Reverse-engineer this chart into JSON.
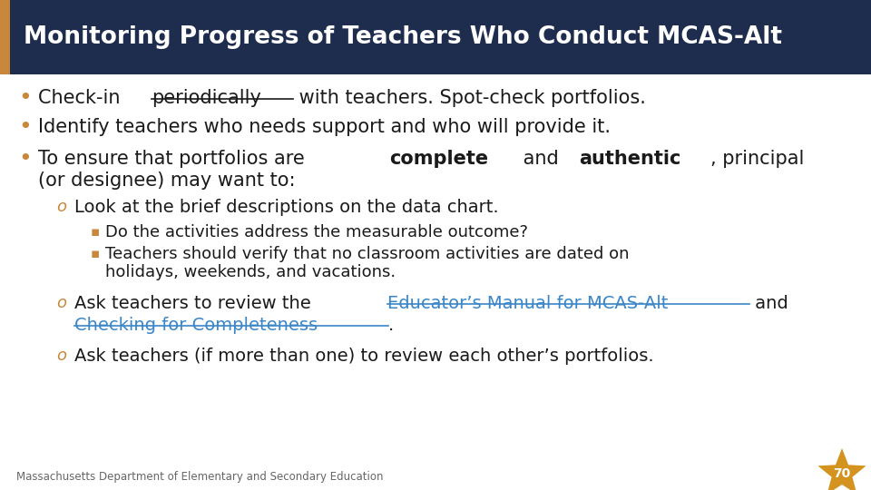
{
  "title": "Monitoring Progress of Teachers Who Conduct MCAS-Alt",
  "title_bg": "#1e2d4e",
  "title_fg": "#ffffff",
  "accent_color": "#c8873a",
  "link_color": "#3a86c8",
  "bullet_color": "#c8873a",
  "body_bg": "#ffffff",
  "footer_text": "Massachusetts Department of Elementary and Secondary Education",
  "star_number": "70",
  "star_color": "#d4921e"
}
